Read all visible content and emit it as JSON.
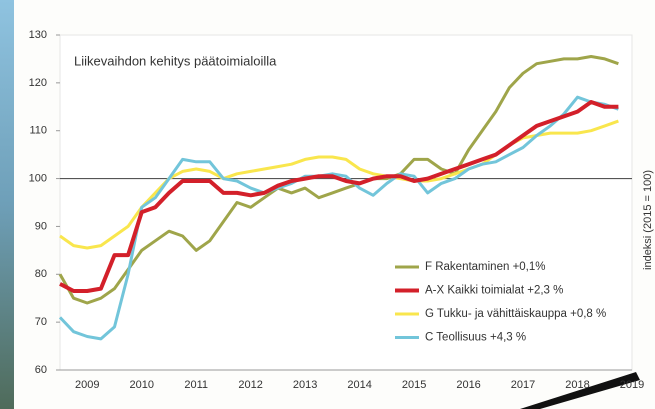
{
  "chart_data": {
    "type": "line",
    "title": "Liikevaihdon kehitys päätoimialoilla",
    "y_label": "indeksi (2015 = 100)",
    "x": [
      2009.0,
      2009.25,
      2009.5,
      2009.75,
      2010.0,
      2010.25,
      2010.5,
      2010.75,
      2011.0,
      2011.25,
      2011.5,
      2011.75,
      2012.0,
      2012.25,
      2012.5,
      2012.75,
      2013.0,
      2013.25,
      2013.5,
      2013.75,
      2014.0,
      2014.25,
      2014.5,
      2014.75,
      2015.0,
      2015.25,
      2015.5,
      2015.75,
      2016.0,
      2016.25,
      2016.5,
      2016.75,
      2017.0,
      2017.25,
      2017.5,
      2017.75,
      2018.0,
      2018.25,
      2018.5,
      2018.75,
      2019.0,
      2019.25
    ],
    "xlim": [
      2009,
      2019.5
    ],
    "xticks": [
      {
        "value": 2009.5,
        "label": "2009"
      },
      {
        "value": 2010.5,
        "label": "2010"
      },
      {
        "value": 2011.5,
        "label": "2011"
      },
      {
        "value": 2012.5,
        "label": "2012"
      },
      {
        "value": 2013.5,
        "label": "2013"
      },
      {
        "value": 2014.5,
        "label": "2014"
      },
      {
        "value": 2015.5,
        "label": "2015"
      },
      {
        "value": 2016.5,
        "label": "2016"
      },
      {
        "value": 2017.5,
        "label": "2017"
      },
      {
        "value": 2018.5,
        "label": "2018"
      },
      {
        "value": 2019.5,
        "label": "2019"
      }
    ],
    "ylim": [
      60,
      130
    ],
    "yticks": [
      60,
      70,
      80,
      90,
      100,
      110,
      120,
      130
    ],
    "reference_line": 100,
    "legend_position": "lower right",
    "series": [
      {
        "name": "F Rakentaminen +0,1%",
        "color": "#9fa54a",
        "values": [
          80,
          75,
          74,
          75,
          77,
          81,
          85,
          87,
          89,
          88,
          85,
          87,
          91,
          95,
          94,
          96,
          98,
          97,
          98,
          96,
          97,
          98,
          99,
          100,
          100,
          101,
          104,
          104,
          102,
          101,
          106,
          110,
          114,
          119,
          122,
          124,
          124.5,
          125,
          125,
          125.5,
          125,
          124
        ]
      },
      {
        "name": "A-X Kaikki toimialat +2,3 %",
        "color": "#d3202a",
        "values": [
          78,
          76.5,
          76.5,
          77,
          84,
          84,
          93,
          94,
          97,
          99.5,
          99.5,
          99.5,
          97,
          97,
          96.5,
          97,
          98.5,
          99.5,
          100,
          100.5,
          100.5,
          99.5,
          99,
          100,
          100.5,
          100.5,
          99.5,
          100,
          101,
          102,
          103,
          104,
          105,
          107,
          109,
          111,
          112,
          113,
          114,
          116,
          115,
          115
        ]
      },
      {
        "name": "G Tukku- ja vähittäiskauppa +0,8 %",
        "color": "#f9e64d",
        "values": [
          88,
          86,
          85.5,
          86,
          88,
          90,
          94,
          97,
          100,
          101.5,
          102,
          101.5,
          100,
          101,
          101.5,
          102,
          102.5,
          103,
          104,
          104.5,
          104.5,
          104,
          102,
          101,
          100.5,
          100,
          99.5,
          99.5,
          100,
          101,
          102,
          103,
          105,
          107,
          108.5,
          109,
          109.5,
          109.5,
          109.5,
          110,
          111,
          112
        ]
      },
      {
        "name": "C Teollisuus +4,3 %",
        "color": "#72c5da",
        "values": [
          71,
          68,
          67,
          66.5,
          69,
          80,
          94,
          96,
          100,
          104,
          103.5,
          103.5,
          100,
          99.5,
          98,
          97,
          98,
          99,
          100.5,
          100.5,
          101,
          100.5,
          98,
          96.5,
          99,
          101,
          100.5,
          97,
          99,
          100,
          102,
          103,
          103.5,
          105,
          106.5,
          109,
          111,
          113.5,
          117,
          116,
          115.5,
          114.5
        ]
      }
    ]
  }
}
